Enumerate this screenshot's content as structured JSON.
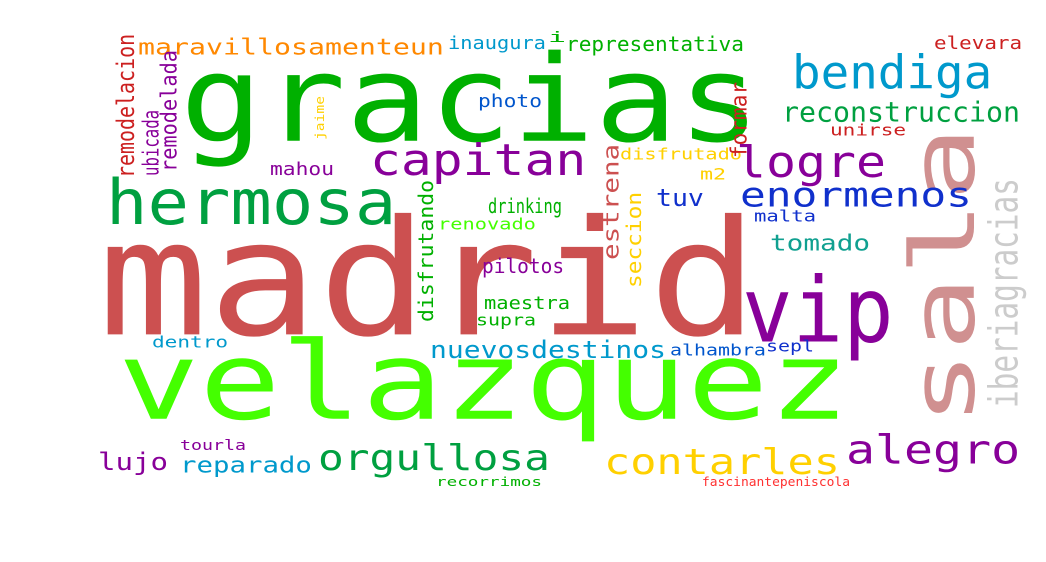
{
  "words": [
    {
      "text": "madrid",
      "color": "#cc5050"
    },
    {
      "text": "gracias",
      "color": "#00b000"
    },
    {
      "text": "velazquez",
      "color": "#44ff00"
    },
    {
      "text": "sala",
      "color": "#d09090"
    },
    {
      "text": "vip",
      "color": "#880099"
    },
    {
      "text": "hermosa",
      "color": "#00a040"
    },
    {
      "text": "bendiga",
      "color": "#0099cc"
    },
    {
      "text": "capitan",
      "color": "#880099"
    },
    {
      "text": "logre",
      "color": "#880099"
    },
    {
      "text": "alegro",
      "color": "#880099"
    },
    {
      "text": "orgullosa",
      "color": "#00a040"
    },
    {
      "text": "contarles",
      "color": "#ffd000"
    },
    {
      "text": "enormenos",
      "color": "#1030cc"
    },
    {
      "text": "reconstruccion",
      "color": "#00a040"
    },
    {
      "text": "maravillosamenteun",
      "color": "#ff8800"
    },
    {
      "text": "nuevosdestinos",
      "color": "#0099cc"
    },
    {
      "text": "iberiagracias",
      "color": "#cccccc"
    },
    {
      "text": "reparado",
      "color": "#0099cc"
    },
    {
      "text": "lujo",
      "color": "#880099"
    },
    {
      "text": "tomado",
      "color": "#10a090"
    },
    {
      "text": "tuv",
      "color": "#1030cc"
    },
    {
      "text": "drinking",
      "color": "#00b000"
    },
    {
      "text": "representativa",
      "color": "#00b000"
    },
    {
      "text": "inaugura",
      "color": "#0099cc"
    },
    {
      "text": "elevara",
      "color": "#cc2020"
    },
    {
      "text": "unirse",
      "color": "#cc2020"
    },
    {
      "text": "pilotos",
      "color": "#880099"
    },
    {
      "text": "maestra",
      "color": "#00b000"
    },
    {
      "text": "supra",
      "color": "#00b000"
    },
    {
      "text": "photo",
      "color": "#0055cc"
    },
    {
      "text": "mahou",
      "color": "#880099"
    },
    {
      "text": "malta",
      "color": "#1030cc"
    },
    {
      "text": "sepl",
      "color": "#1030cc"
    },
    {
      "text": "dentro",
      "color": "#0099cc"
    },
    {
      "text": "alhambra",
      "color": "#0055cc"
    },
    {
      "text": "renovado",
      "color": "#44ff00"
    },
    {
      "text": "disfrutado",
      "color": "#ffd000"
    },
    {
      "text": "m2",
      "color": "#ffd000"
    },
    {
      "text": "tourla",
      "color": "#880099"
    },
    {
      "text": "recorrimos",
      "color": "#00b000"
    },
    {
      "text": "fascinantepeniscola",
      "color": "#ff3030"
    },
    {
      "text": "remodelacion",
      "color": "#cc2020"
    },
    {
      "text": "remodelada",
      "color": "#880099"
    },
    {
      "text": "ubicada",
      "color": "#880099"
    },
    {
      "text": "formar",
      "color": "#cc2020"
    },
    {
      "text": "estrena",
      "color": "#cc5050"
    },
    {
      "text": "seccion",
      "color": "#ffd000"
    },
    {
      "text": "disfrutando",
      "color": "#00b000"
    },
    {
      "text": "jaime",
      "color": "#ffd000"
    },
    {
      "text": "i",
      "color": "#00b000"
    }
  ]
}
